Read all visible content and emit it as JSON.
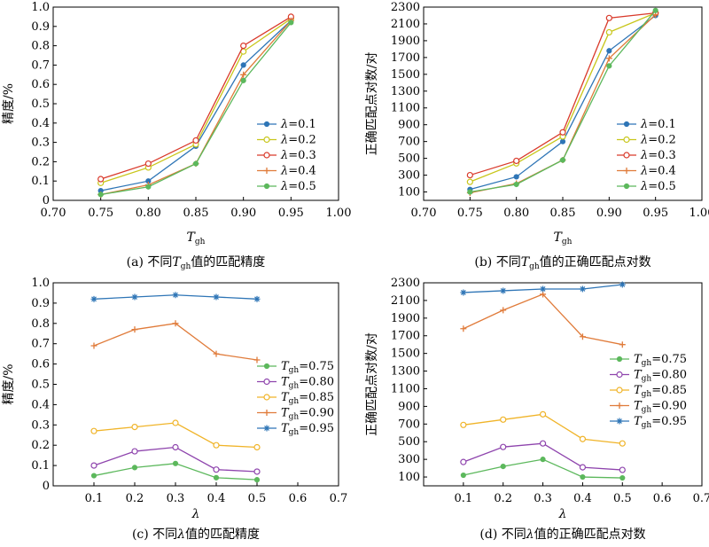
{
  "figure": {
    "panels": [
      {
        "caption_prefix": "(a) 不同",
        "caption_var": "T",
        "caption_sub": "gh",
        "caption_suffix": "值的匹配精度",
        "xlabel": "T",
        "xlabel_sub": "gh",
        "ylabel": "精度/%",
        "legend_label": "λ",
        "legend_sub": "",
        "legend_position": "center-right"
      },
      {
        "caption_prefix": "(b) 不同",
        "caption_var": "T",
        "caption_sub": "gh",
        "caption_suffix": "值的正确匹配点对数",
        "xlabel": "T",
        "xlabel_sub": "gh",
        "ylabel": "正确匹配点对数/对",
        "legend_label": "λ",
        "legend_sub": "",
        "legend_position": "bottom-right"
      },
      {
        "caption_prefix": "(c) 不同",
        "caption_var": "λ",
        "caption_sub": "",
        "caption_suffix": "值的匹配精度",
        "xlabel": "λ",
        "xlabel_sub": "",
        "ylabel": "精度/%",
        "legend_label": "T",
        "legend_sub": "gh",
        "legend_position": "center-right"
      },
      {
        "caption_prefix": "(d) 不同",
        "caption_var": "λ",
        "caption_sub": "",
        "caption_suffix": "值的正确匹配点对数",
        "xlabel": "λ",
        "xlabel_sub": "",
        "ylabel": "正确匹配点对数/对",
        "legend_label": "T",
        "legend_sub": "gh",
        "legend_position": "center-right"
      }
    ]
  },
  "chart_data": [
    {
      "type": "line",
      "x": [
        0.75,
        0.8,
        0.85,
        0.9,
        0.95
      ],
      "xlim": [
        0.7,
        1.0
      ],
      "xticks": [
        "0.70",
        "0.75",
        "0.80",
        "0.85",
        "0.90",
        "0.95",
        "1.00"
      ],
      "ylim": [
        0,
        1.0
      ],
      "yticks": [
        "0",
        "0.1",
        "0.2",
        "0.3",
        "0.4",
        "0.5",
        "0.6",
        "0.7",
        "0.8",
        "0.9",
        "1.0"
      ],
      "series": [
        {
          "name": "=0.1",
          "color": "#2e75b6",
          "marker": "dot",
          "values": [
            0.05,
            0.1,
            0.28,
            0.7,
            0.93
          ]
        },
        {
          "name": "=0.2",
          "color": "#c8c61a",
          "marker": "circle",
          "values": [
            0.09,
            0.17,
            0.29,
            0.77,
            0.94
          ]
        },
        {
          "name": "=0.3",
          "color": "#d93a2b",
          "marker": "circle",
          "values": [
            0.11,
            0.19,
            0.31,
            0.8,
            0.95
          ]
        },
        {
          "name": "=0.4",
          "color": "#e07b3a",
          "marker": "plus",
          "values": [
            0.03,
            0.08,
            0.19,
            0.65,
            0.93
          ]
        },
        {
          "name": "=0.5",
          "color": "#5cb85c",
          "marker": "dot",
          "values": [
            0.03,
            0.07,
            0.19,
            0.62,
            0.92
          ]
        }
      ]
    },
    {
      "type": "line",
      "x": [
        0.75,
        0.8,
        0.85,
        0.9,
        0.95
      ],
      "xlim": [
        0.7,
        1.0
      ],
      "xticks": [
        "0.70",
        "0.75",
        "0.80",
        "0.85",
        "0.90",
        "0.95",
        "1.00"
      ],
      "ylim": [
        0,
        2300
      ],
      "yticks": [
        "100",
        "300",
        "500",
        "700",
        "900",
        "1100",
        "1300",
        "1500",
        "1700",
        "1900",
        "2100",
        "2300"
      ],
      "series": [
        {
          "name": "=0.1",
          "color": "#2e75b6",
          "marker": "dot",
          "values": [
            130,
            280,
            700,
            1780,
            2200
          ]
        },
        {
          "name": "=0.2",
          "color": "#c8c61a",
          "marker": "circle",
          "values": [
            220,
            440,
            760,
            2000,
            2230
          ]
        },
        {
          "name": "=0.3",
          "color": "#d93a2b",
          "marker": "circle",
          "values": [
            300,
            470,
            810,
            2170,
            2230
          ]
        },
        {
          "name": "=0.4",
          "color": "#e07b3a",
          "marker": "plus",
          "values": [
            90,
            200,
            480,
            1690,
            2210
          ]
        },
        {
          "name": "=0.5",
          "color": "#5cb85c",
          "marker": "dot",
          "values": [
            100,
            190,
            480,
            1600,
            2260
          ]
        }
      ]
    },
    {
      "type": "line",
      "x": [
        0.1,
        0.2,
        0.3,
        0.4,
        0.5
      ],
      "xlim": [
        0,
        0.7
      ],
      "xticks": [
        "0.1",
        "0.2",
        "0.3",
        "0.4",
        "0.5",
        "0.6",
        "0.7"
      ],
      "ylim": [
        0,
        1.0
      ],
      "yticks": [
        "0",
        "0.1",
        "0.2",
        "0.3",
        "0.4",
        "0.5",
        "0.6",
        "0.7",
        "0.8",
        "0.9",
        "1.0"
      ],
      "series": [
        {
          "name": "=0.75",
          "color": "#5cb85c",
          "marker": "dot",
          "values": [
            0.05,
            0.09,
            0.11,
            0.04,
            0.03
          ]
        },
        {
          "name": "=0.80",
          "color": "#8e44ad",
          "marker": "circle",
          "values": [
            0.1,
            0.17,
            0.19,
            0.08,
            0.07
          ]
        },
        {
          "name": "=0.85",
          "color": "#f0b429",
          "marker": "circle",
          "values": [
            0.27,
            0.29,
            0.31,
            0.2,
            0.19
          ]
        },
        {
          "name": "=0.90",
          "color": "#e07b3a",
          "marker": "plus",
          "values": [
            0.69,
            0.77,
            0.8,
            0.65,
            0.62
          ]
        },
        {
          "name": "=0.95",
          "color": "#2e75b6",
          "marker": "star",
          "values": [
            0.92,
            0.93,
            0.94,
            0.93,
            0.92
          ]
        }
      ]
    },
    {
      "type": "line",
      "x": [
        0.1,
        0.2,
        0.3,
        0.4,
        0.5
      ],
      "xlim": [
        0,
        0.7
      ],
      "xticks": [
        "0.1",
        "0.2",
        "0.3",
        "0.4",
        "0.5",
        "0.6",
        "0.7"
      ],
      "ylim": [
        0,
        2300
      ],
      "yticks": [
        "100",
        "300",
        "500",
        "700",
        "900",
        "1100",
        "1300",
        "1500",
        "1700",
        "1900",
        "2100",
        "2300"
      ],
      "series": [
        {
          "name": "=0.75",
          "color": "#5cb85c",
          "marker": "dot",
          "values": [
            120,
            220,
            300,
            100,
            90
          ]
        },
        {
          "name": "=0.80",
          "color": "#8e44ad",
          "marker": "circle",
          "values": [
            270,
            440,
            480,
            210,
            180
          ]
        },
        {
          "name": "=0.85",
          "color": "#f0b429",
          "marker": "circle",
          "values": [
            690,
            750,
            810,
            530,
            480
          ]
        },
        {
          "name": "=0.90",
          "color": "#e07b3a",
          "marker": "plus",
          "values": [
            1780,
            1990,
            2170,
            1690,
            1600
          ]
        },
        {
          "name": "=0.95",
          "color": "#2e75b6",
          "marker": "star",
          "values": [
            2190,
            2210,
            2230,
            2230,
            2280
          ]
        }
      ]
    }
  ]
}
